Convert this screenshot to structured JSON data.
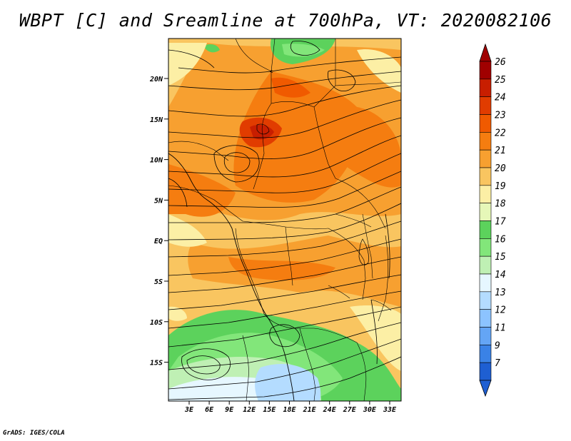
{
  "title": "WBPT [C] and Sreamline at 700hPa, VT: 2020082106",
  "credit": "GrADS: IGES/COLA",
  "lat_ticks": [
    "20N",
    "15N",
    "10N",
    "5N",
    "EQ",
    "5S",
    "10S",
    "15S"
  ],
  "lon_ticks": [
    "3E",
    "6E",
    "9E",
    "12E",
    "15E",
    "18E",
    "21E",
    "24E",
    "27E",
    "30E",
    "33E"
  ],
  "colorbar": {
    "labels": [
      "26",
      "25",
      "24",
      "23",
      "22",
      "21",
      "20",
      "19",
      "18",
      "17",
      "16",
      "15",
      "14",
      "13",
      "12",
      "11",
      "9",
      "7"
    ],
    "colors": [
      "#a00000",
      "#c81e00",
      "#e13c00",
      "#f05a00",
      "#f57d10",
      "#f7a030",
      "#f9c560",
      "#fcefa5",
      "#e6f7b8",
      "#5cd25c",
      "#82e67a",
      "#bff0b4",
      "#e6f7ff",
      "#b4dcff",
      "#8cc3ff",
      "#64a5f5",
      "#3a82e6",
      "#1e5fd2"
    ],
    "top_arrow_color": "#a00000",
    "bottom_arrow_color": "#1e5fd2"
  },
  "map": {
    "ocean_color": "#f9c560",
    "lon_range": [
      0,
      35
    ],
    "lat_range": [
      -20,
      25
    ]
  }
}
